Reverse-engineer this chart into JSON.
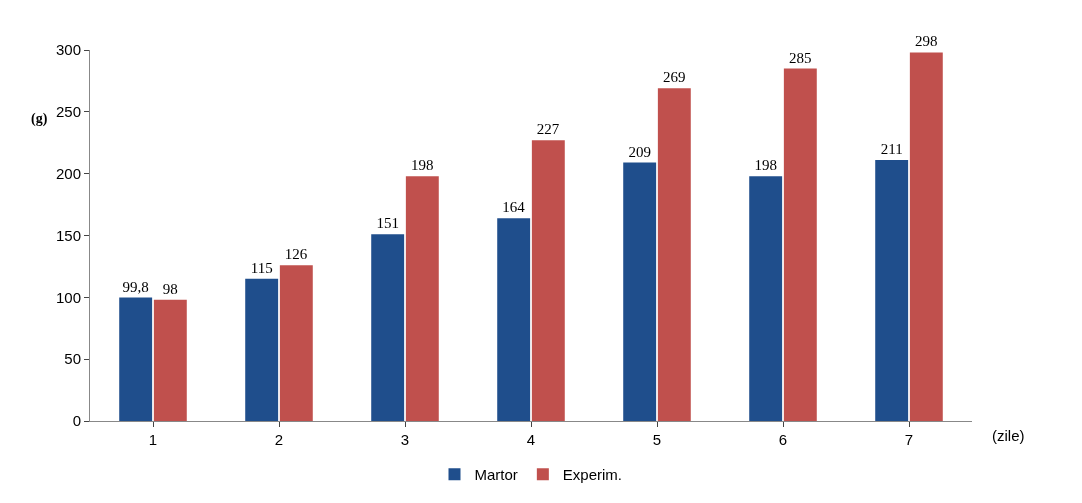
{
  "chart_data": {
    "type": "bar",
    "categories": [
      "1",
      "2",
      "3",
      "4",
      "5",
      "6",
      "7"
    ],
    "xlabel": "(zile)",
    "ylabel": "(g)",
    "series": [
      {
        "name": "Martor",
        "color": "#1f4e8c",
        "values": [
          99.8,
          115,
          151,
          164,
          209,
          198,
          211
        ],
        "value_labels": [
          "99,8",
          "115",
          "151",
          "164",
          "209",
          "198",
          "211"
        ]
      },
      {
        "name": "Experim.",
        "color": "#c0504d",
        "values": [
          98,
          126,
          198,
          227,
          269,
          285,
          298
        ],
        "value_labels": [
          "98",
          "126",
          "198",
          "227",
          "269",
          "285",
          "298"
        ]
      }
    ],
    "ylim": [
      0,
      300
    ],
    "yticks": [
      0,
      50,
      100,
      150,
      200,
      250,
      300
    ],
    "legend": "bottom"
  }
}
